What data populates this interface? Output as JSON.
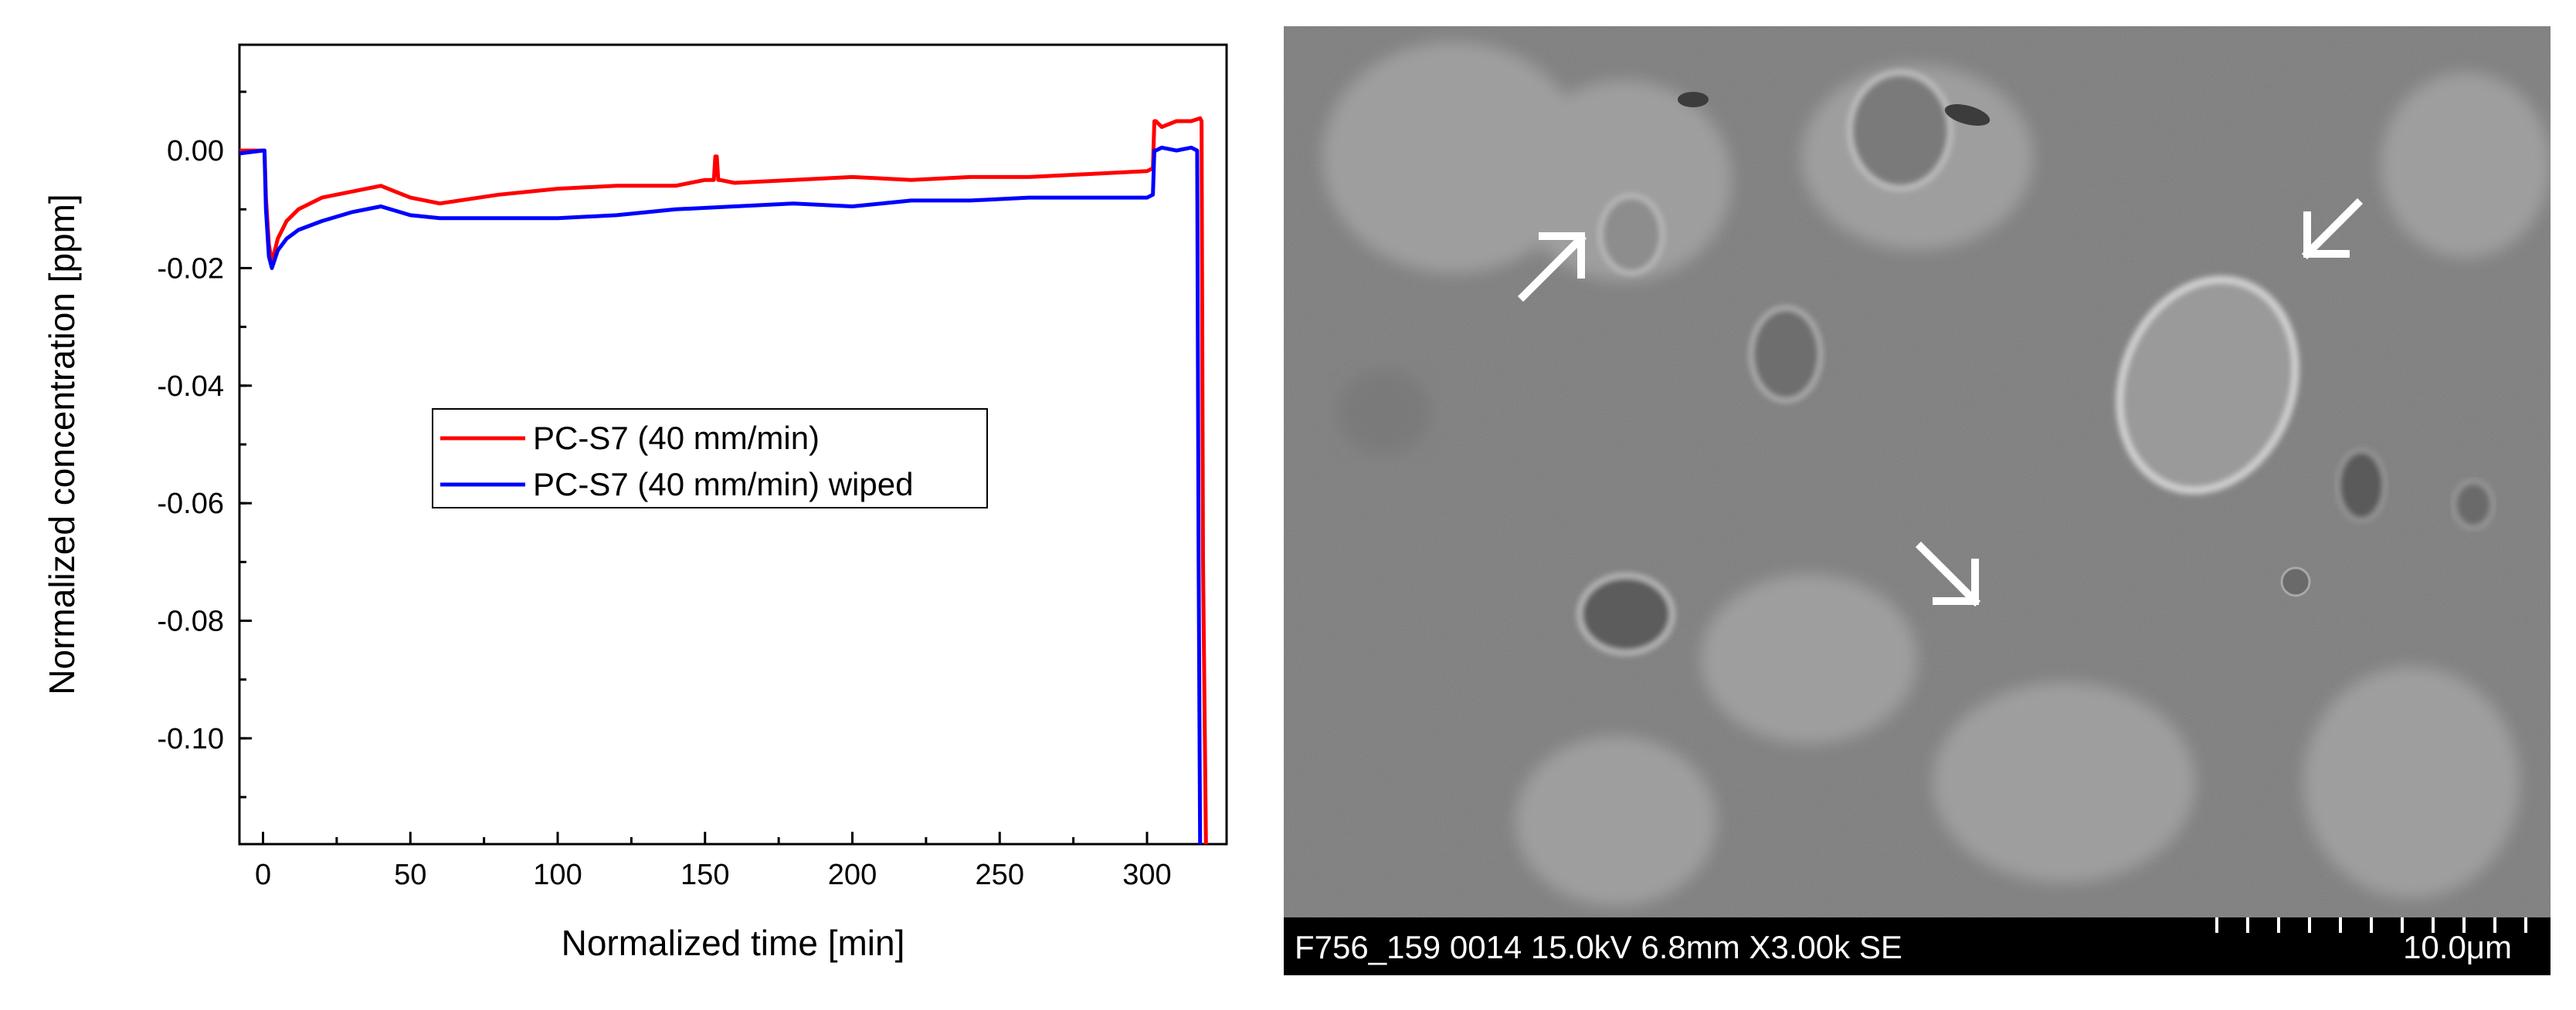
{
  "chart_data": {
    "type": "line",
    "xlabel": "Normalized time [min]",
    "ylabel": "Normalized concentration [ppm]",
    "xlim": [
      -8,
      327
    ],
    "ylim": [
      -0.118,
      0.018
    ],
    "xticks": [
      0,
      50,
      100,
      150,
      200,
      250,
      300
    ],
    "yticks": [
      0.0,
      -0.02,
      -0.04,
      -0.06,
      -0.08,
      -0.1
    ],
    "ytick_labels": [
      "0.00",
      "-0.02",
      "-0.04",
      "-0.06",
      "-0.08",
      "-0.10"
    ],
    "grid": false,
    "legend_position": "center-left",
    "series": [
      {
        "name": "PC-S7 (40 mm/min)",
        "color": "#ff0000",
        "x": [
          -8,
          0,
          0.5,
          1,
          2,
          3,
          5,
          8,
          12,
          20,
          30,
          40,
          50,
          60,
          80,
          100,
          120,
          140,
          150,
          153,
          153.5,
          154,
          154.5,
          155,
          160,
          180,
          200,
          220,
          240,
          260,
          280,
          300,
          302,
          302.5,
          303,
          305,
          310,
          315,
          318,
          318.5,
          319,
          320
        ],
        "y": [
          0.0,
          0.0,
          0.0,
          -0.008,
          -0.016,
          -0.019,
          -0.015,
          -0.012,
          -0.01,
          -0.008,
          -0.007,
          -0.006,
          -0.008,
          -0.009,
          -0.0075,
          -0.0065,
          -0.006,
          -0.006,
          -0.005,
          -0.005,
          -0.001,
          -0.001,
          -0.005,
          -0.005,
          -0.0055,
          -0.005,
          -0.0045,
          -0.005,
          -0.0045,
          -0.0045,
          -0.004,
          -0.0035,
          -0.003,
          0.005,
          0.005,
          0.004,
          0.005,
          0.005,
          0.0055,
          0.005,
          -0.07,
          -0.118
        ]
      },
      {
        "name": "PC-S7 (40 mm/min) wiped",
        "color": "#0000ff",
        "x": [
          -8,
          0,
          0.5,
          1,
          2,
          3,
          5,
          8,
          12,
          20,
          30,
          40,
          50,
          60,
          80,
          100,
          120,
          140,
          160,
          180,
          200,
          220,
          240,
          260,
          280,
          300,
          302,
          302.5,
          303,
          305,
          310,
          315,
          317,
          317.5,
          318
        ],
        "y": [
          -0.0005,
          0.0,
          0.0,
          -0.01,
          -0.018,
          -0.02,
          -0.017,
          -0.015,
          -0.0135,
          -0.012,
          -0.0105,
          -0.0095,
          -0.011,
          -0.0115,
          -0.0115,
          -0.0115,
          -0.011,
          -0.01,
          -0.0095,
          -0.009,
          -0.0095,
          -0.0085,
          -0.0085,
          -0.008,
          -0.008,
          -0.008,
          -0.0075,
          0.0,
          0.0,
          0.0005,
          0.0,
          0.0005,
          0.0,
          -0.07,
          -0.118
        ]
      }
    ]
  },
  "sem": {
    "caption": "F756_159 0014 15.0kV 6.8mm X3.00k SE",
    "scale_label": "10.0μm",
    "background_color": "#8a8a8a",
    "arrow_color": "#ffffff"
  }
}
